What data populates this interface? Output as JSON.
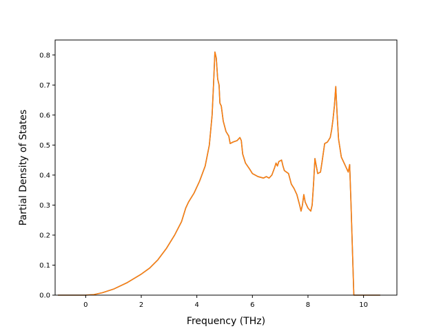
{
  "chart_data": {
    "type": "line",
    "title": "",
    "xlabel": "Frequency (THz)",
    "ylabel": "Partial Density of States",
    "xlim": [
      -1.1,
      11.2
    ],
    "ylim": [
      0,
      0.85
    ],
    "x_ticks": [
      0,
      2,
      4,
      6,
      8,
      10
    ],
    "y_ticks": [
      0.0,
      0.1,
      0.2,
      0.3,
      0.4,
      0.5,
      0.6,
      0.7,
      0.8
    ],
    "x_tick_labels": [
      "0",
      "2",
      "4",
      "6",
      "8",
      "10"
    ],
    "y_tick_labels": [
      "0.0",
      "0.1",
      "0.2",
      "0.3",
      "0.4",
      "0.5",
      "0.6",
      "0.7",
      "0.8"
    ],
    "grid": false,
    "series": [
      {
        "color": "#2a7fb8",
        "points": [
          [
            -1.0,
            0.0
          ],
          [
            0.0,
            0.0
          ],
          [
            0.3,
            0.002
          ],
          [
            0.6,
            0.008
          ],
          [
            1.0,
            0.02
          ],
          [
            1.5,
            0.042
          ],
          [
            2.0,
            0.07
          ],
          [
            2.3,
            0.09
          ],
          [
            2.6,
            0.118
          ],
          [
            2.9,
            0.155
          ],
          [
            3.2,
            0.2
          ],
          [
            3.45,
            0.245
          ],
          [
            3.6,
            0.29
          ],
          [
            3.7,
            0.31
          ],
          [
            3.9,
            0.34
          ],
          [
            4.1,
            0.38
          ],
          [
            4.3,
            0.43
          ],
          [
            4.45,
            0.5
          ],
          [
            4.55,
            0.6
          ],
          [
            4.6,
            0.7
          ],
          [
            4.65,
            0.81
          ],
          [
            4.7,
            0.79
          ],
          [
            4.75,
            0.72
          ],
          [
            4.8,
            0.7
          ],
          [
            4.83,
            0.64
          ],
          [
            4.88,
            0.63
          ],
          [
            4.95,
            0.58
          ],
          [
            5.05,
            0.545
          ],
          [
            5.15,
            0.53
          ],
          [
            5.2,
            0.505
          ],
          [
            5.3,
            0.51
          ],
          [
            5.45,
            0.515
          ],
          [
            5.55,
            0.525
          ],
          [
            5.6,
            0.515
          ],
          [
            5.65,
            0.47
          ],
          [
            5.75,
            0.44
          ],
          [
            5.9,
            0.42
          ],
          [
            6.0,
            0.405
          ],
          [
            6.2,
            0.395
          ],
          [
            6.4,
            0.39
          ],
          [
            6.5,
            0.395
          ],
          [
            6.6,
            0.39
          ],
          [
            6.7,
            0.4
          ],
          [
            6.8,
            0.425
          ],
          [
            6.85,
            0.44
          ],
          [
            6.9,
            0.43
          ],
          [
            6.95,
            0.445
          ],
          [
            7.05,
            0.45
          ],
          [
            7.1,
            0.43
          ],
          [
            7.15,
            0.415
          ],
          [
            7.3,
            0.405
          ],
          [
            7.4,
            0.37
          ],
          [
            7.5,
            0.355
          ],
          [
            7.6,
            0.335
          ],
          [
            7.7,
            0.3
          ],
          [
            7.75,
            0.28
          ],
          [
            7.8,
            0.3
          ],
          [
            7.85,
            0.335
          ],
          [
            7.9,
            0.31
          ],
          [
            8.0,
            0.29
          ],
          [
            8.1,
            0.28
          ],
          [
            8.15,
            0.3
          ],
          [
            8.2,
            0.37
          ],
          [
            8.25,
            0.455
          ],
          [
            8.3,
            0.43
          ],
          [
            8.35,
            0.405
          ],
          [
            8.45,
            0.41
          ],
          [
            8.5,
            0.44
          ],
          [
            8.6,
            0.505
          ],
          [
            8.7,
            0.51
          ],
          [
            8.8,
            0.525
          ],
          [
            8.85,
            0.55
          ],
          [
            8.9,
            0.585
          ],
          [
            8.95,
            0.63
          ],
          [
            9.0,
            0.695
          ],
          [
            9.05,
            0.6
          ],
          [
            9.1,
            0.52
          ],
          [
            9.2,
            0.46
          ],
          [
            9.35,
            0.43
          ],
          [
            9.45,
            0.41
          ],
          [
            9.5,
            0.435
          ],
          [
            9.55,
            0.3
          ],
          [
            9.6,
            0.15
          ],
          [
            9.65,
            0.0
          ],
          [
            10.6,
            0.0
          ]
        ]
      },
      {
        "color": "#ff7f0e",
        "points": [
          [
            -1.0,
            0.0
          ],
          [
            0.0,
            0.0
          ],
          [
            0.3,
            0.002
          ],
          [
            0.6,
            0.008
          ],
          [
            1.0,
            0.02
          ],
          [
            1.5,
            0.042
          ],
          [
            2.0,
            0.07
          ],
          [
            2.3,
            0.09
          ],
          [
            2.6,
            0.118
          ],
          [
            2.9,
            0.155
          ],
          [
            3.2,
            0.2
          ],
          [
            3.45,
            0.245
          ],
          [
            3.6,
            0.29
          ],
          [
            3.7,
            0.31
          ],
          [
            3.9,
            0.34
          ],
          [
            4.1,
            0.38
          ],
          [
            4.3,
            0.43
          ],
          [
            4.45,
            0.5
          ],
          [
            4.55,
            0.6
          ],
          [
            4.6,
            0.7
          ],
          [
            4.65,
            0.81
          ],
          [
            4.7,
            0.79
          ],
          [
            4.75,
            0.72
          ],
          [
            4.8,
            0.7
          ],
          [
            4.83,
            0.64
          ],
          [
            4.88,
            0.63
          ],
          [
            4.95,
            0.58
          ],
          [
            5.05,
            0.545
          ],
          [
            5.15,
            0.53
          ],
          [
            5.2,
            0.505
          ],
          [
            5.3,
            0.51
          ],
          [
            5.45,
            0.515
          ],
          [
            5.55,
            0.525
          ],
          [
            5.6,
            0.515
          ],
          [
            5.65,
            0.47
          ],
          [
            5.75,
            0.44
          ],
          [
            5.9,
            0.42
          ],
          [
            6.0,
            0.405
          ],
          [
            6.2,
            0.395
          ],
          [
            6.4,
            0.39
          ],
          [
            6.5,
            0.395
          ],
          [
            6.6,
            0.39
          ],
          [
            6.7,
            0.4
          ],
          [
            6.8,
            0.425
          ],
          [
            6.85,
            0.44
          ],
          [
            6.9,
            0.43
          ],
          [
            6.95,
            0.445
          ],
          [
            7.05,
            0.45
          ],
          [
            7.1,
            0.43
          ],
          [
            7.15,
            0.415
          ],
          [
            7.3,
            0.405
          ],
          [
            7.4,
            0.37
          ],
          [
            7.5,
            0.355
          ],
          [
            7.6,
            0.335
          ],
          [
            7.7,
            0.3
          ],
          [
            7.75,
            0.28
          ],
          [
            7.8,
            0.3
          ],
          [
            7.85,
            0.335
          ],
          [
            7.9,
            0.31
          ],
          [
            8.0,
            0.29
          ],
          [
            8.1,
            0.28
          ],
          [
            8.15,
            0.3
          ],
          [
            8.2,
            0.37
          ],
          [
            8.25,
            0.455
          ],
          [
            8.3,
            0.43
          ],
          [
            8.35,
            0.405
          ],
          [
            8.45,
            0.41
          ],
          [
            8.5,
            0.44
          ],
          [
            8.6,
            0.505
          ],
          [
            8.7,
            0.51
          ],
          [
            8.8,
            0.525
          ],
          [
            8.85,
            0.55
          ],
          [
            8.9,
            0.585
          ],
          [
            8.95,
            0.63
          ],
          [
            9.0,
            0.695
          ],
          [
            9.05,
            0.6
          ],
          [
            9.1,
            0.52
          ],
          [
            9.2,
            0.46
          ],
          [
            9.35,
            0.43
          ],
          [
            9.45,
            0.41
          ],
          [
            9.5,
            0.435
          ],
          [
            9.55,
            0.3
          ],
          [
            9.6,
            0.15
          ],
          [
            9.65,
            0.0
          ],
          [
            10.6,
            0.0
          ]
        ]
      }
    ]
  }
}
